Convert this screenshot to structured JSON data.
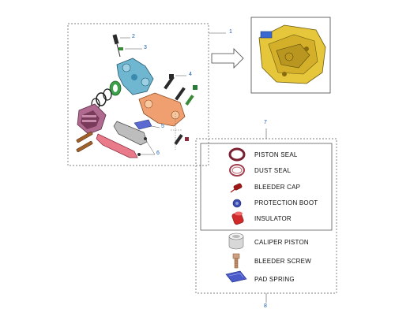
{
  "callouts": {
    "c1": "1",
    "c2": "2",
    "c3": "3",
    "c4": "4",
    "c5": "5",
    "c6": "6",
    "c7": "7",
    "c8": "8"
  },
  "kit_items": [
    {
      "label": "PISTON SEAL",
      "icon": "piston-seal-icon"
    },
    {
      "label": "DUST SEAL",
      "icon": "dust-seal-icon"
    },
    {
      "label": "BLEEDER CAP",
      "icon": "bleeder-cap-icon"
    },
    {
      "label": "PROTECTION BOOT",
      "icon": "protection-boot-icon"
    },
    {
      "label": "INSULATOR",
      "icon": "insulator-icon"
    },
    {
      "label": "CALIPER PISTON",
      "icon": "caliper-piston-icon"
    },
    {
      "label": "BLEEDER SCREW",
      "icon": "bleeder-screw-icon"
    },
    {
      "label": "PAD SPRING",
      "icon": "pad-spring-icon"
    }
  ],
  "colors": {
    "callout": "#1a5aa8",
    "caliper_body": "#6fb6d0",
    "bracket": "#f0a070",
    "pad": "#e87a8a",
    "boot": "#7a3a5a",
    "seal": "#7a2030",
    "assembly": "#e6c63a"
  }
}
